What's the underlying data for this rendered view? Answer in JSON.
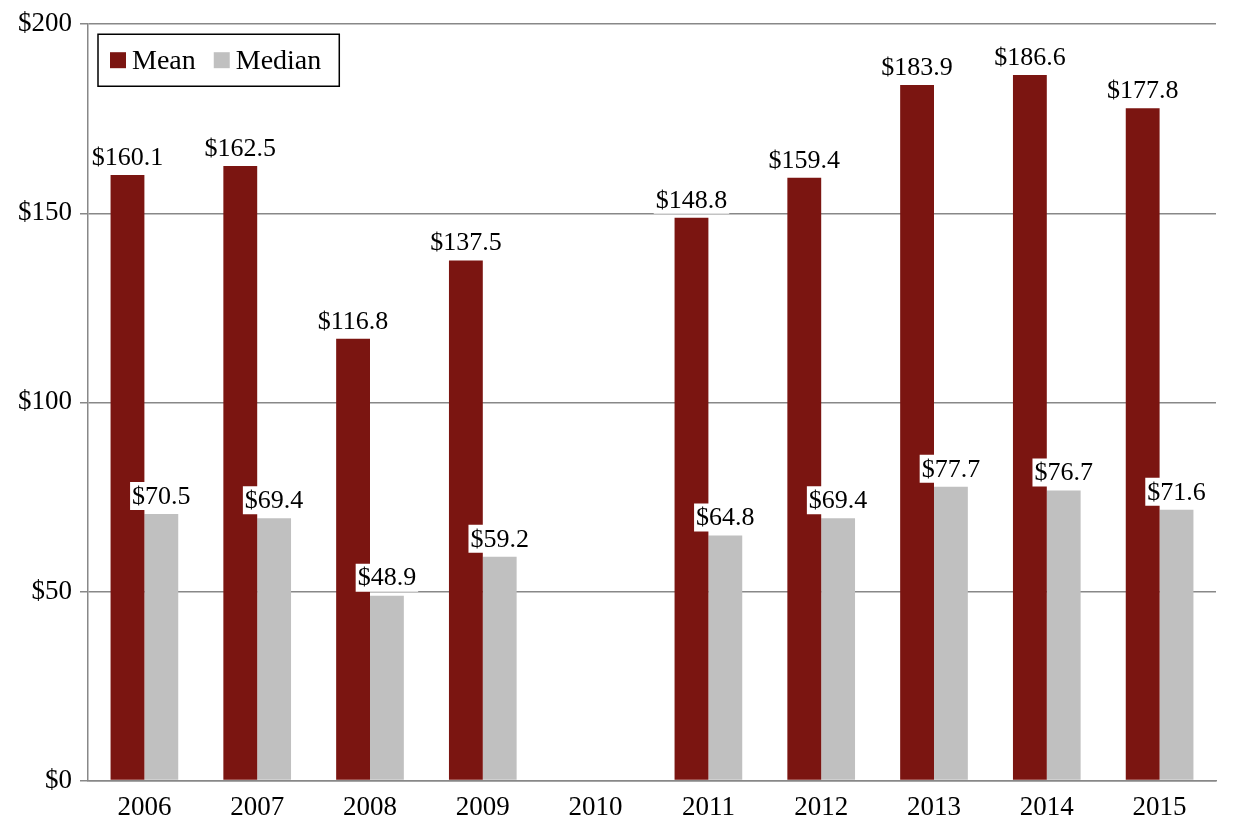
{
  "chart_data": {
    "type": "bar",
    "categories": [
      "2006",
      "2007",
      "2008",
      "2009",
      "2010",
      "2011",
      "2012",
      "2013",
      "2014",
      "2015"
    ],
    "series": [
      {
        "name": "Mean",
        "color": "#7b1511",
        "values": [
          160.1,
          162.5,
          116.8,
          137.5,
          null,
          148.8,
          159.4,
          183.9,
          186.6,
          177.8
        ],
        "value_labels": [
          "$160.1",
          "$162.5",
          "$116.8",
          "$137.5",
          null,
          "$148.8",
          "$159.4",
          "$183.9",
          "$186.6",
          "$177.8"
        ]
      },
      {
        "name": "Median",
        "color": "#c0c0c0",
        "values": [
          70.5,
          69.4,
          48.9,
          59.2,
          null,
          64.8,
          69.4,
          77.7,
          76.7,
          71.6
        ],
        "value_labels": [
          "$70.5",
          "$69.4",
          "$48.9",
          "$59.2",
          null,
          "$64.8",
          "$69.4",
          "$77.7",
          "$76.7",
          "$71.6"
        ]
      }
    ],
    "ylim": [
      0,
      200
    ],
    "yticks": [
      {
        "value": 0,
        "label": "$0"
      },
      {
        "value": 50,
        "label": "$50"
      },
      {
        "value": 100,
        "label": "$100"
      },
      {
        "value": 150,
        "label": "$150"
      },
      {
        "value": 200,
        "label": "$200"
      }
    ],
    "grid": "y",
    "legend": "top left"
  }
}
